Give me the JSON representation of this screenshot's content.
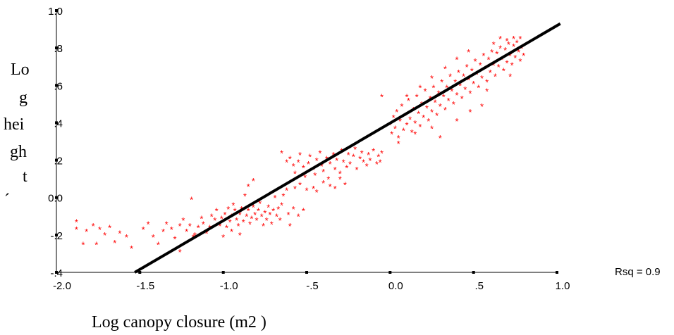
{
  "chart_data": {
    "type": "scatter",
    "title": "",
    "xlabel": "Log canopy closure (m2 )",
    "ylabel_lines": [
      "Lo",
      "g",
      "hei",
      "gh",
      "t",
      "´"
    ],
    "xlim": [
      -2.0,
      1.0
    ],
    "ylim": [
      -0.4,
      1.0
    ],
    "x_ticks": [
      -2.0,
      -1.5,
      -1.0,
      -0.5,
      0.0,
      0.5,
      1.0
    ],
    "x_tick_labels": [
      "-2.0",
      "-1.5",
      "-1.0",
      "-.5",
      "0.0",
      ".5",
      "1.0"
    ],
    "y_ticks": [
      -0.4,
      -0.2,
      0.0,
      0.2,
      0.4,
      0.6,
      0.8,
      1.0
    ],
    "y_tick_labels": [
      "-.4",
      "-.2",
      "0.0",
      ".2",
      ".4",
      ".6",
      ".8",
      "1.0"
    ],
    "annotation": "Rsq = 0.9",
    "marker": "*",
    "marker_color": "#ff0000",
    "fit_line": {
      "x": [
        -1.53,
        1.02
      ],
      "y": [
        -0.4,
        0.93
      ],
      "color": "#000000"
    },
    "series": [
      {
        "points": [
          [
            -1.88,
            -0.12
          ],
          [
            -1.88,
            -0.16
          ],
          [
            -1.84,
            -0.24
          ],
          [
            -1.82,
            -0.17
          ],
          [
            -1.78,
            -0.14
          ],
          [
            -1.76,
            -0.24
          ],
          [
            -1.74,
            -0.16
          ],
          [
            -1.71,
            -0.19
          ],
          [
            -1.68,
            -0.15
          ],
          [
            -1.65,
            -0.23
          ],
          [
            -1.62,
            -0.18
          ],
          [
            -1.58,
            -0.2
          ],
          [
            -1.55,
            -0.26
          ],
          [
            -1.48,
            -0.16
          ],
          [
            -1.45,
            -0.13
          ],
          [
            -1.42,
            -0.2
          ],
          [
            -1.39,
            -0.24
          ],
          [
            -1.36,
            -0.17
          ],
          [
            -1.34,
            -0.13
          ],
          [
            -1.31,
            -0.16
          ],
          [
            -1.29,
            -0.21
          ],
          [
            -1.26,
            -0.14
          ],
          [
            -1.24,
            -0.11
          ],
          [
            -1.22,
            -0.17
          ],
          [
            -1.2,
            -0.14
          ],
          [
            -1.19,
            0.0
          ],
          [
            -1.17,
            -0.19
          ],
          [
            -1.15,
            -0.15
          ],
          [
            -1.13,
            -0.1
          ],
          [
            -1.12,
            -0.13
          ],
          [
            -1.1,
            -0.18
          ],
          [
            -1.08,
            -0.15
          ],
          [
            -1.07,
            -0.09
          ],
          [
            -1.05,
            -0.11
          ],
          [
            -1.04,
            -0.06
          ],
          [
            -1.02,
            -0.14
          ],
          [
            -1.01,
            -0.1
          ],
          [
            -0.99,
            -0.08
          ],
          [
            -0.98,
            -0.15
          ],
          [
            -0.97,
            -0.05
          ],
          [
            -0.96,
            -0.12
          ],
          [
            -0.95,
            -0.09
          ],
          [
            -0.94,
            -0.03
          ],
          [
            -0.93,
            -0.06
          ],
          [
            -0.92,
            -0.11
          ],
          [
            -0.91,
            -0.14
          ],
          [
            -0.9,
            -0.08
          ],
          [
            -0.89,
            -0.05
          ],
          [
            -0.88,
            -0.12
          ],
          [
            -0.87,
            0.02
          ],
          [
            -0.86,
            -0.09
          ],
          [
            -0.85,
            -0.06
          ],
          [
            -0.84,
            -0.13
          ],
          [
            -0.83,
            -0.1
          ],
          [
            -0.82,
            -0.04
          ],
          [
            -0.81,
            -0.08
          ],
          [
            -0.8,
            -0.11
          ],
          [
            -0.79,
            -0.06
          ],
          [
            -0.78,
            -0.02
          ],
          [
            -0.77,
            -0.09
          ],
          [
            -0.76,
            -0.14
          ],
          [
            -0.75,
            -0.07
          ],
          [
            -0.74,
            -0.11
          ],
          [
            -0.73,
            -0.04
          ],
          [
            -0.72,
            -0.08
          ],
          [
            -0.71,
            -0.13
          ],
          [
            -0.7,
            -0.06
          ],
          [
            -0.69,
            0.01
          ],
          [
            -0.68,
            -0.09
          ],
          [
            -0.67,
            -0.05
          ],
          [
            -0.66,
            -0.11
          ],
          [
            -0.65,
            -0.03
          ],
          [
            -0.64,
            0.02
          ],
          [
            -0.62,
            0.05
          ],
          [
            -0.61,
            -0.08
          ],
          [
            -0.6,
            -0.14
          ],
          [
            -0.58,
            -0.05
          ],
          [
            -0.57,
            0.06
          ],
          [
            -0.55,
            -0.09
          ],
          [
            -0.54,
            0.08
          ],
          [
            -0.52,
            -0.06
          ],
          [
            -0.95,
            -0.17
          ],
          [
            -0.9,
            -0.19
          ],
          [
            -0.85,
            0.07
          ],
          [
            -0.82,
            0.1
          ],
          [
            -1.26,
            -0.28
          ],
          [
            -1.18,
            -0.2
          ],
          [
            -1.0,
            -0.2
          ],
          [
            -0.6,
            0.22
          ],
          [
            -0.58,
            0.18
          ],
          [
            -0.57,
            0.14
          ],
          [
            -0.55,
            0.2
          ],
          [
            -0.54,
            0.24
          ],
          [
            -0.52,
            0.17
          ],
          [
            -0.51,
            0.12
          ],
          [
            -0.49,
            0.19
          ],
          [
            -0.48,
            0.23
          ],
          [
            -0.46,
            0.16
          ],
          [
            -0.45,
            0.13
          ],
          [
            -0.44,
            0.21
          ],
          [
            -0.42,
            0.25
          ],
          [
            -0.41,
            0.18
          ],
          [
            -0.4,
            0.15
          ],
          [
            -0.38,
            0.22
          ],
          [
            -0.37,
            0.11
          ],
          [
            -0.36,
            0.19
          ],
          [
            -0.34,
            0.24
          ],
          [
            -0.33,
            0.16
          ],
          [
            -0.32,
            0.21
          ],
          [
            -0.3,
            0.14
          ],
          [
            -0.29,
            0.26
          ],
          [
            -0.28,
            0.2
          ],
          [
            -0.26,
            0.17
          ],
          [
            -0.25,
            0.24
          ],
          [
            -0.24,
            0.19
          ],
          [
            -0.22,
            0.23
          ],
          [
            -0.21,
            0.27
          ],
          [
            -0.2,
            0.16
          ],
          [
            -0.18,
            0.22
          ],
          [
            -0.17,
            0.25
          ],
          [
            -0.16,
            0.2
          ],
          [
            -0.14,
            0.18
          ],
          [
            -0.13,
            0.24
          ],
          [
            -0.12,
            0.21
          ],
          [
            -0.1,
            0.26
          ],
          [
            -0.08,
            0.19
          ],
          [
            -0.07,
            0.23
          ],
          [
            -0.05,
            0.25
          ],
          [
            -0.5,
            0.05
          ],
          [
            -0.46,
            0.06
          ],
          [
            -0.44,
            0.04
          ],
          [
            -0.4,
            0.09
          ],
          [
            -0.36,
            0.07
          ],
          [
            -0.33,
            0.06
          ],
          [
            -0.3,
            0.11
          ],
          [
            -0.27,
            0.08
          ],
          [
            -0.62,
            0.2
          ],
          [
            -0.65,
            0.25
          ],
          [
            -0.06,
            0.2
          ],
          [
            0.0,
            0.4
          ],
          [
            0.01,
            0.35
          ],
          [
            0.02,
            0.44
          ],
          [
            0.03,
            0.38
          ],
          [
            0.04,
            0.47
          ],
          [
            0.05,
            0.33
          ],
          [
            0.06,
            0.42
          ],
          [
            0.07,
            0.5
          ],
          [
            0.08,
            0.37
          ],
          [
            0.09,
            0.45
          ],
          [
            0.1,
            0.4
          ],
          [
            0.11,
            0.53
          ],
          [
            0.12,
            0.43
          ],
          [
            0.13,
            0.36
          ],
          [
            0.14,
            0.48
          ],
          [
            0.15,
            0.41
          ],
          [
            0.16,
            0.55
          ],
          [
            0.17,
            0.46
          ],
          [
            0.18,
            0.39
          ],
          [
            0.19,
            0.51
          ],
          [
            0.2,
            0.44
          ],
          [
            0.21,
            0.58
          ],
          [
            0.22,
            0.49
          ],
          [
            0.23,
            0.42
          ],
          [
            0.24,
            0.54
          ],
          [
            0.25,
            0.47
          ],
          [
            0.26,
            0.6
          ],
          [
            0.27,
            0.52
          ],
          [
            0.28,
            0.45
          ],
          [
            0.29,
            0.57
          ],
          [
            0.3,
            0.5
          ],
          [
            0.31,
            0.63
          ],
          [
            0.32,
            0.55
          ],
          [
            0.33,
            0.48
          ],
          [
            0.34,
            0.6
          ],
          [
            0.35,
            0.53
          ],
          [
            0.36,
            0.66
          ],
          [
            0.37,
            0.58
          ],
          [
            0.38,
            0.51
          ],
          [
            0.39,
            0.63
          ],
          [
            0.4,
            0.56
          ],
          [
            0.41,
            0.68
          ],
          [
            0.42,
            0.61
          ],
          [
            0.43,
            0.54
          ],
          [
            0.44,
            0.66
          ],
          [
            0.45,
            0.59
          ],
          [
            0.46,
            0.71
          ],
          [
            0.47,
            0.64
          ],
          [
            0.48,
            0.57
          ],
          [
            0.49,
            0.69
          ],
          [
            0.5,
            0.62
          ],
          [
            0.51,
            0.74
          ],
          [
            0.52,
            0.67
          ],
          [
            0.53,
            0.6
          ],
          [
            0.54,
            0.72
          ],
          [
            0.55,
            0.65
          ],
          [
            0.56,
            0.77
          ],
          [
            0.57,
            0.7
          ],
          [
            0.58,
            0.63
          ],
          [
            0.59,
            0.75
          ],
          [
            0.6,
            0.68
          ],
          [
            0.61,
            0.79
          ],
          [
            0.62,
            0.72
          ],
          [
            0.63,
            0.66
          ],
          [
            0.64,
            0.78
          ],
          [
            0.65,
            0.71
          ],
          [
            0.66,
            0.81
          ],
          [
            0.67,
            0.75
          ],
          [
            0.68,
            0.69
          ],
          [
            0.69,
            0.8
          ],
          [
            0.7,
            0.73
          ],
          [
            0.71,
            0.83
          ],
          [
            0.72,
            0.77
          ],
          [
            0.73,
            0.72
          ],
          [
            0.74,
            0.82
          ],
          [
            0.75,
            0.76
          ],
          [
            0.76,
            0.84
          ],
          [
            0.77,
            0.79
          ],
          [
            0.78,
            0.74
          ],
          [
            0.79,
            0.81
          ],
          [
            0.8,
            0.77
          ],
          [
            0.62,
            0.83
          ],
          [
            0.66,
            0.86
          ],
          [
            0.7,
            0.85
          ],
          [
            0.74,
            0.86
          ],
          [
            0.78,
            0.86
          ],
          [
            0.1,
            0.55
          ],
          [
            0.18,
            0.6
          ],
          [
            0.25,
            0.65
          ],
          [
            0.33,
            0.7
          ],
          [
            0.4,
            0.75
          ],
          [
            0.47,
            0.79
          ],
          [
            0.3,
            0.33
          ],
          [
            0.4,
            0.42
          ],
          [
            0.55,
            0.5
          ],
          [
            0.48,
            0.47
          ],
          [
            -0.05,
            0.55
          ],
          [
            0.05,
            0.3
          ],
          [
            0.15,
            0.35
          ],
          [
            0.25,
            0.38
          ],
          [
            0.58,
            0.58
          ],
          [
            0.72,
            0.66
          ]
        ]
      }
    ]
  }
}
